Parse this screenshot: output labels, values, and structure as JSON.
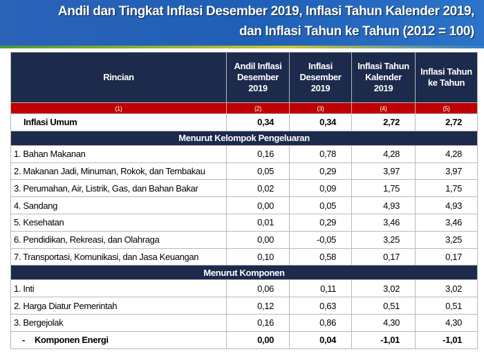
{
  "header": {
    "title_lines": [
      "Andil dan Tingkat Inflasi Desember 2019, Inflasi Tahun Kalender 2019,",
      "dan Inflasi Tahun ke Tahun (2012 = 100)"
    ]
  },
  "table": {
    "columns": [
      "Rincian",
      "Andil Inflasi Desember 2019",
      "Inflasi Desember 2019",
      "Inflasi Tahun Kalender 2019",
      "Inflasi Tahun ke Tahun"
    ],
    "column_numbers": [
      "(1)",
      "(2)",
      "(3)",
      "(4)",
      "(5)"
    ],
    "total": {
      "label": "Inflasi Umum",
      "values": [
        "0,34",
        "0,34",
        "2,72",
        "2,72"
      ]
    },
    "sections": [
      {
        "title": "Menurut Kelompok Pengeluaran",
        "rows": [
          {
            "label": "1. Bahan Makanan",
            "values": [
              "0,16",
              "0,78",
              "4,28",
              "4,28"
            ]
          },
          {
            "label": "2. Makanan Jadi, Minuman, Rokok, dan Tembakau",
            "values": [
              "0,05",
              "0,29",
              "3,97",
              "3,97"
            ]
          },
          {
            "label": "3. Perumahan, Air, Listrik, Gas, dan Bahan Bakar",
            "values": [
              "0,02",
              "0,09",
              "1,75",
              "1,75"
            ]
          },
          {
            "label": "4. Sandang",
            "values": [
              "0,00",
              "0,05",
              "4,93",
              "4,93"
            ]
          },
          {
            "label": "5. Kesehatan",
            "values": [
              "0,01",
              "0,29",
              "3,46",
              "3,46"
            ]
          },
          {
            "label": "6. Pendidikan, Rekreasi, dan Olahraga",
            "values": [
              "0,00",
              "-0,05",
              "3,25",
              "3,25"
            ]
          },
          {
            "label": "7. Transportasi, Komunikasi, dan Jasa Keuangan",
            "values": [
              "0,10",
              "0,58",
              "0,17",
              "0,17"
            ]
          }
        ]
      },
      {
        "title": "Menurut Komponen",
        "rows": [
          {
            "label": "1. Inti",
            "values": [
              "0,06",
              "0,11",
              "3,02",
              "3,02"
            ]
          },
          {
            "label": "2. Harga Diatur Pemerintah",
            "values": [
              "0,12",
              "0,63",
              "0,51",
              "0,51"
            ]
          },
          {
            "label": "3. Bergejolak",
            "values": [
              "0,16",
              "0,86",
              "4,30",
              "4,30"
            ]
          }
        ],
        "sub_rows": [
          {
            "marker": "-",
            "label": "Komponen Energi",
            "values": [
              "0,00",
              "0,04",
              "-1,01",
              "-1,01"
            ]
          }
        ]
      }
    ]
  }
}
